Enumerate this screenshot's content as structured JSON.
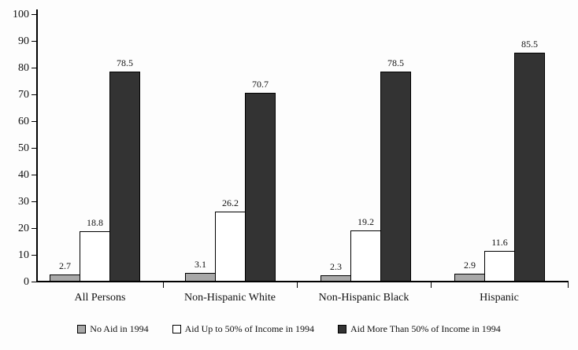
{
  "chart_data": {
    "type": "bar",
    "title": "",
    "xlabel": "",
    "ylabel": "",
    "categories": [
      "All Persons",
      "Non-Hispanic White",
      "Non-Hispanic Black",
      "Hispanic"
    ],
    "series": [
      {
        "name": "No Aid in 1994",
        "color": "#a8a8a8",
        "values": [
          2.7,
          3.1,
          2.3,
          2.9
        ]
      },
      {
        "name": "Aid Up to 50% of Income in 1994",
        "color": "#ffffff",
        "values": [
          18.8,
          26.2,
          19.2,
          11.6
        ]
      },
      {
        "name": "Aid More Than 50% of Income in 1994",
        "color": "#333333",
        "values": [
          78.5,
          70.7,
          78.5,
          85.5
        ]
      }
    ],
    "ylim": [
      0,
      100
    ],
    "yticks": [
      0,
      10,
      20,
      30,
      40,
      50,
      60,
      70,
      80,
      90,
      100
    ],
    "grid": false,
    "legend_position": "bottom",
    "data_labels": true,
    "axis_color": "#000000",
    "bar_border_color": "#000000",
    "background": "#fdfdfd"
  }
}
